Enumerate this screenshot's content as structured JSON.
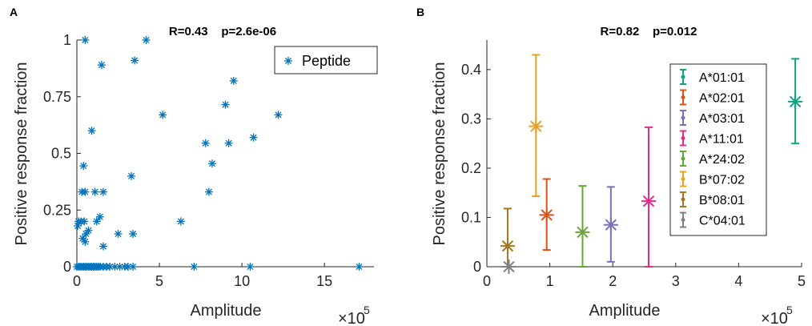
{
  "chart_data": [
    {
      "panel_label": "A",
      "type": "scatter",
      "title": "R=0.43    p=2.6e-06",
      "xlabel": "Amplitude",
      "ylabel": "Positive response fraction",
      "x_multiplier": "×10",
      "x_multiplier_exp": "5",
      "xlim": [
        0,
        18
      ],
      "ylim": [
        0,
        1
      ],
      "xticks": [
        0,
        5,
        10,
        15
      ],
      "yticks": [
        0,
        0.25,
        0.5,
        0.75,
        1
      ],
      "ytick_labels": [
        "0",
        "0.25",
        "0.5",
        "0.75",
        "1"
      ],
      "legend_position": "top-right",
      "marker_color": "#0072BD",
      "series": [
        {
          "name": "Peptide",
          "points": [
            [
              0.5,
              1.0
            ],
            [
              4.2,
              1.0
            ],
            [
              1.5,
              0.89
            ],
            [
              3.5,
              0.91
            ],
            [
              9.5,
              0.82
            ],
            [
              0.9,
              0.6
            ],
            [
              5.2,
              0.67
            ],
            [
              12.2,
              0.67
            ],
            [
              9.0,
              0.715
            ],
            [
              7.8,
              0.545
            ],
            [
              9.2,
              0.545
            ],
            [
              10.7,
              0.57
            ],
            [
              8.2,
              0.455
            ],
            [
              0.4,
              0.445
            ],
            [
              3.3,
              0.4
            ],
            [
              8.0,
              0.33
            ],
            [
              0.3,
              0.33
            ],
            [
              0.5,
              0.33
            ],
            [
              1.1,
              0.33
            ],
            [
              1.6,
              0.33
            ],
            [
              1.4,
              0.22
            ],
            [
              1.2,
              0.2
            ],
            [
              6.3,
              0.2
            ],
            [
              0.1,
              0.2
            ],
            [
              0.25,
              0.2
            ],
            [
              0.45,
              0.2
            ],
            [
              0.05,
              0.18
            ],
            [
              0.7,
              0.16
            ],
            [
              0.55,
              0.145
            ],
            [
              2.5,
              0.145
            ],
            [
              3.4,
              0.145
            ],
            [
              0.35,
              0.125
            ],
            [
              0.5,
              0.11
            ],
            [
              1.6,
              0.09
            ],
            [
              0.0,
              0.0
            ],
            [
              0.1,
              0.0
            ],
            [
              0.2,
              0.0
            ],
            [
              0.3,
              0.0
            ],
            [
              0.4,
              0.0
            ],
            [
              0.5,
              0.0
            ],
            [
              0.6,
              0.0
            ],
            [
              0.7,
              0.0
            ],
            [
              0.8,
              0.0
            ],
            [
              0.9,
              0.0
            ],
            [
              1.0,
              0.0
            ],
            [
              1.1,
              0.0
            ],
            [
              1.2,
              0.0
            ],
            [
              1.3,
              0.0
            ],
            [
              1.4,
              0.0
            ],
            [
              1.6,
              0.0
            ],
            [
              1.8,
              0.0
            ],
            [
              2.0,
              0.0
            ],
            [
              2.3,
              0.0
            ],
            [
              2.6,
              0.0
            ],
            [
              2.9,
              0.0
            ],
            [
              3.1,
              0.0
            ],
            [
              3.4,
              0.0
            ],
            [
              7.1,
              0.0
            ],
            [
              10.5,
              0.0
            ],
            [
              17.1,
              0.0
            ]
          ]
        }
      ]
    },
    {
      "panel_label": "B",
      "type": "scatter",
      "title": "R=0.82    p=0.012",
      "xlabel": "Amplitude",
      "ylabel": "Positive response fraction",
      "x_multiplier": "×10",
      "x_multiplier_exp": "5",
      "xlim": [
        0,
        5
      ],
      "ylim": [
        0,
        0.46
      ],
      "xticks": [
        0,
        1,
        2,
        3,
        4,
        5
      ],
      "yticks": [
        0,
        0.1,
        0.2,
        0.3,
        0.4
      ],
      "ytick_labels": [
        "0",
        "0.1",
        "0.2",
        "0.3",
        "0.4"
      ],
      "legend_position": "top-right",
      "series": [
        {
          "name": "A*01:01",
          "color": "#10A37F",
          "x": 4.9,
          "y": 0.335,
          "lower": 0.25,
          "upper": 0.422
        },
        {
          "name": "A*02:01",
          "color": "#D95319",
          "x": 0.95,
          "y": 0.105,
          "lower": 0.034,
          "upper": 0.178
        },
        {
          "name": "A*03:01",
          "color": "#7E6FB5",
          "x": 1.97,
          "y": 0.085,
          "lower": 0.01,
          "upper": 0.162
        },
        {
          "name": "A*11:01",
          "color": "#E7298A",
          "x": 2.57,
          "y": 0.133,
          "lower": 0.0,
          "upper": 0.283
        },
        {
          "name": "A*24:02",
          "color": "#66A63A",
          "x": 1.52,
          "y": 0.07,
          "lower": 0.0,
          "upper": 0.164
        },
        {
          "name": "B*07:02",
          "color": "#E6A11D",
          "x": 0.78,
          "y": 0.285,
          "lower": 0.143,
          "upper": 0.43
        },
        {
          "name": "B*08:01",
          "color": "#A6761D",
          "x": 0.33,
          "y": 0.042,
          "lower": 0.0,
          "upper": 0.118
        },
        {
          "name": "C*04:01",
          "color": "#808080",
          "x": 0.35,
          "y": 0.0,
          "lower": 0.0,
          "upper": 0.0
        }
      ]
    }
  ]
}
